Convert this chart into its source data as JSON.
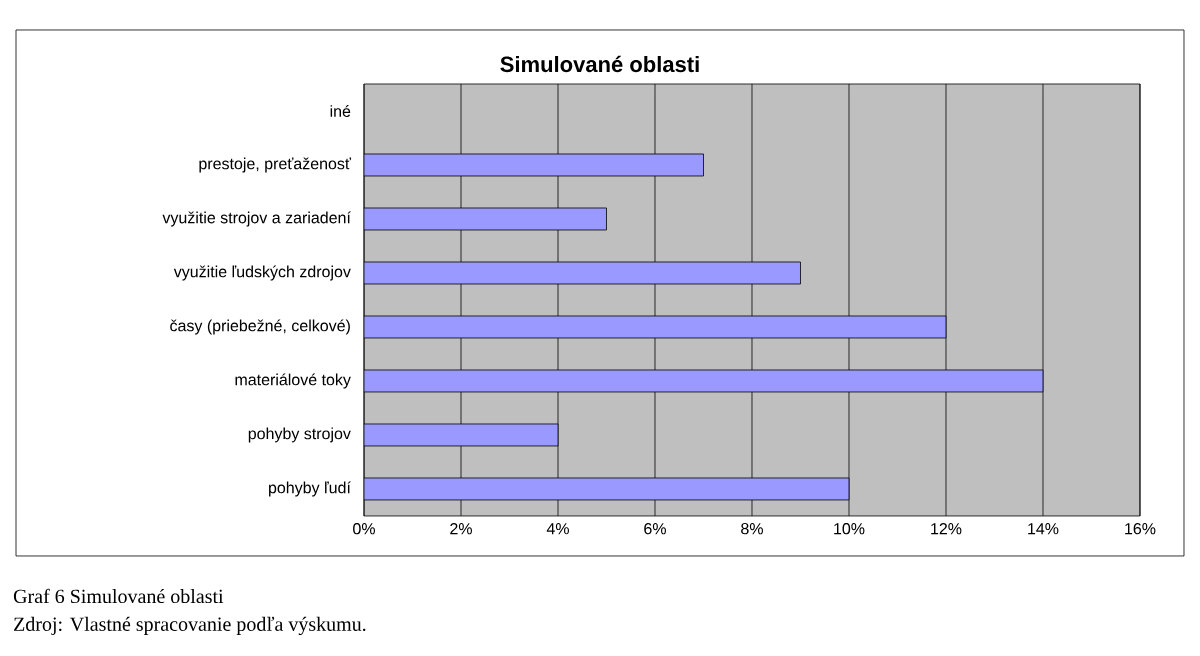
{
  "chart_data": {
    "type": "bar",
    "orientation": "horizontal",
    "title": "Simulované oblasti",
    "categories": [
      "iné",
      "prestoje, preťaženosť",
      "využitie strojov a zariadení",
      "využitie ľudských zdrojov",
      "časy (priebežné, celkové)",
      "materiálové toky",
      "pohyby strojov",
      "pohyby ľudí"
    ],
    "values": [
      null,
      7,
      5,
      9,
      12,
      14,
      4,
      10
    ],
    "color": "#9999ff",
    "xlim": [
      0,
      16
    ],
    "xticks": [
      {
        "value": 0,
        "label": "0%"
      },
      {
        "value": 2,
        "label": "2%"
      },
      {
        "value": 4,
        "label": "4%"
      },
      {
        "value": 6,
        "label": "6%"
      },
      {
        "value": 8,
        "label": "8%"
      },
      {
        "value": 10,
        "label": "10%"
      },
      {
        "value": 12,
        "label": "12%"
      },
      {
        "value": 14,
        "label": "14%"
      },
      {
        "value": 16,
        "label": "16%"
      }
    ],
    "grid": "x",
    "annotations": [
      "Graf 6 Simulované oblasti",
      "Zdroj: Vlastné spracovanie podľa výskumu."
    ]
  }
}
